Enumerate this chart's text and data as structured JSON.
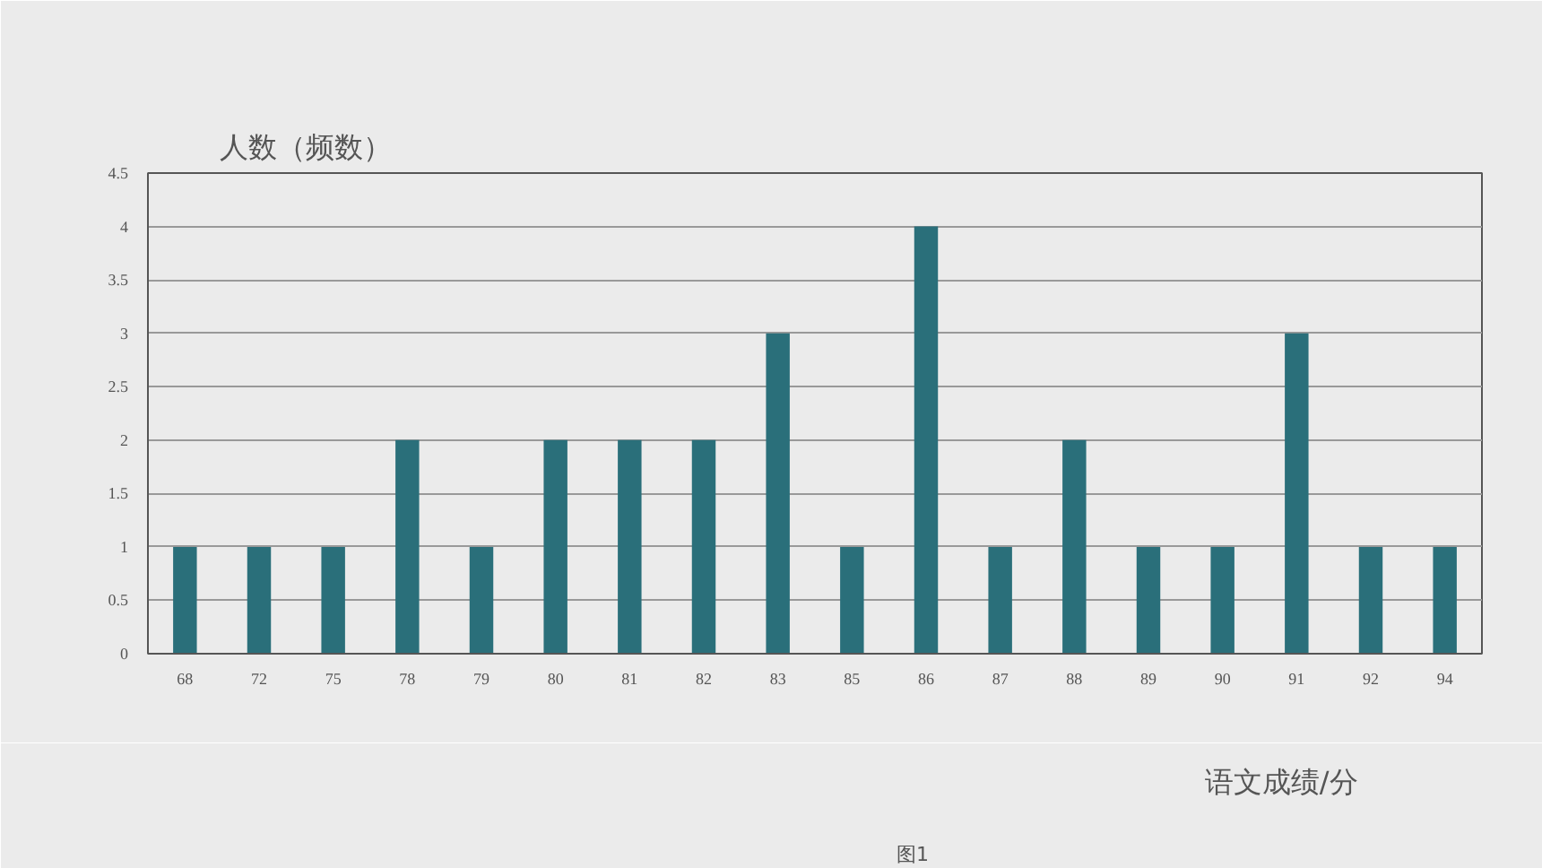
{
  "chart_data": {
    "type": "bar",
    "ylabel": "人数（频数）",
    "xlabel": "语文成绩/分",
    "categories": [
      "68",
      "72",
      "75",
      "78",
      "79",
      "80",
      "81",
      "82",
      "83",
      "85",
      "86",
      "87",
      "88",
      "89",
      "90",
      "91",
      "92",
      "94"
    ],
    "series": [
      {
        "name": "图1",
        "color": "#2a6f7a",
        "values": [
          1,
          1,
          1,
          2,
          1,
          2,
          2,
          2,
          3,
          1,
          4,
          1,
          2,
          1,
          1,
          3,
          1,
          1
        ]
      }
    ],
    "ylim": [
      0,
      4.5
    ],
    "yticks": [
      0,
      0.5,
      1,
      1.5,
      2,
      2.5,
      3,
      3.5,
      4,
      4.5
    ],
    "grid": "y",
    "legend": "bottom"
  }
}
